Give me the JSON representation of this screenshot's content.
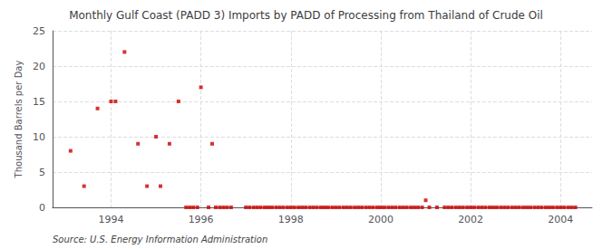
{
  "chart_data": {
    "type": "scatter",
    "title": "Monthly Gulf Coast (PADD 3) Imports by PADD of Processing from Thailand of Crude Oil",
    "ylabel": "Thousand Barrels per Day",
    "source": "Source: U.S. Energy Information Administration",
    "color": "#cc0000",
    "marker": "square",
    "grid": true,
    "xlim": [
      1992.7,
      2004.7
    ],
    "ylim": [
      0,
      25
    ],
    "xticks": [
      1994,
      1996,
      1998,
      2000,
      2002,
      2004
    ],
    "yticks": [
      0,
      5,
      10,
      15,
      20,
      25
    ],
    "x": [
      1993.1,
      1993.4,
      1993.7,
      1994.0,
      1994.1,
      1994.3,
      1994.6,
      1994.8,
      1995.0,
      1995.1,
      1995.3,
      1995.5,
      1995.67,
      1995.75,
      1995.83,
      1995.92,
      1996.0,
      1996.17,
      1996.25,
      1996.33,
      1996.42,
      1996.5,
      1996.58,
      1996.67,
      1997.0,
      1997.08,
      1997.17,
      1997.25,
      1997.33,
      1997.42,
      1997.5,
      1997.58,
      1997.67,
      1997.75,
      1997.83,
      1997.92,
      1998.0,
      1998.08,
      1998.17,
      1998.25,
      1998.33,
      1998.42,
      1998.5,
      1998.58,
      1998.67,
      1998.75,
      1998.83,
      1998.92,
      1999.0,
      1999.08,
      1999.17,
      1999.25,
      1999.33,
      1999.42,
      1999.5,
      1999.58,
      1999.67,
      1999.75,
      1999.83,
      1999.92,
      2000.0,
      2000.08,
      2000.17,
      2000.25,
      2000.33,
      2000.42,
      2000.5,
      2000.58,
      2000.67,
      2000.75,
      2000.83,
      2000.92,
      2001.0,
      2001.08,
      2001.25,
      2001.42,
      2001.5,
      2001.58,
      2001.67,
      2001.75,
      2001.83,
      2001.92,
      2002.0,
      2002.08,
      2002.17,
      2002.25,
      2002.33,
      2002.42,
      2002.5,
      2002.58,
      2002.67,
      2002.75,
      2002.83,
      2002.92,
      2003.0,
      2003.08,
      2003.17,
      2003.25,
      2003.33,
      2003.42,
      2003.5,
      2003.58,
      2003.67,
      2003.75,
      2003.83,
      2003.92,
      2004.0,
      2004.08,
      2004.17,
      2004.25,
      2004.33
    ],
    "values": [
      8,
      3,
      14,
      15,
      15,
      22,
      9,
      3,
      10,
      3,
      9,
      15,
      0,
      0,
      0,
      0,
      17,
      0,
      9,
      0,
      0,
      0,
      0,
      0,
      0,
      0,
      0,
      0,
      0,
      0,
      0,
      0,
      0,
      0,
      0,
      0,
      0,
      0,
      0,
      0,
      0,
      0,
      0,
      0,
      0,
      0,
      0,
      0,
      0,
      0,
      0,
      0,
      0,
      0,
      0,
      0,
      0,
      0,
      0,
      0,
      0,
      0,
      0,
      0,
      0,
      0,
      0,
      0,
      0,
      0,
      0,
      0,
      1,
      0,
      0,
      0,
      0,
      0,
      0,
      0,
      0,
      0,
      0,
      0,
      0,
      0,
      0,
      0,
      0,
      0,
      0,
      0,
      0,
      0,
      0,
      0,
      0,
      0,
      0,
      0,
      0,
      0,
      0,
      0,
      0,
      0,
      0,
      0,
      0,
      0,
      0
    ]
  }
}
